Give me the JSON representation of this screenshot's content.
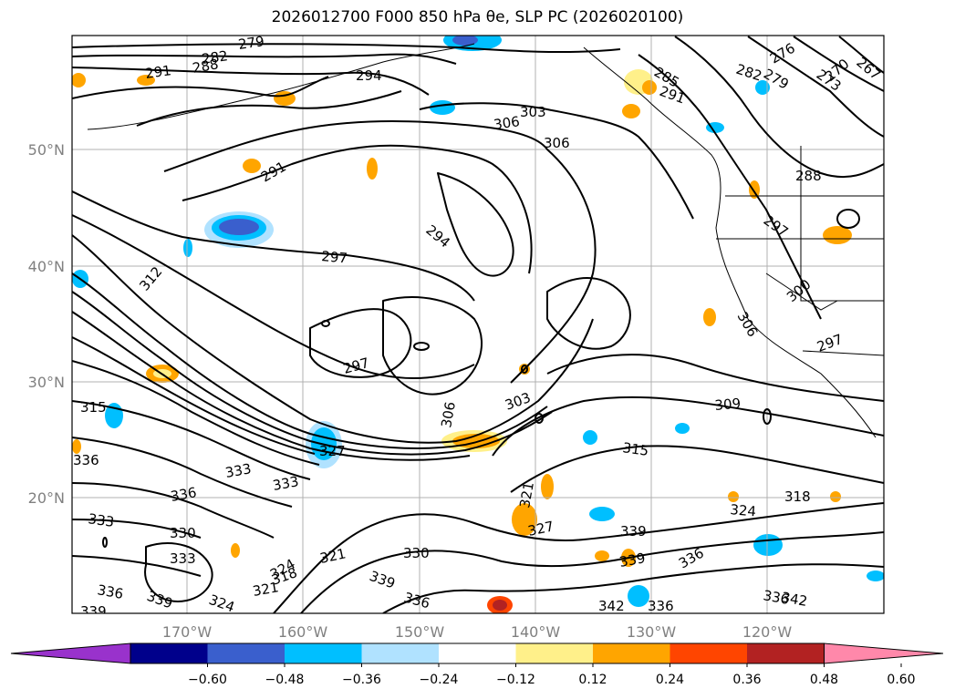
{
  "title": "2026012700 F000 850 hPa θe, SLP PC (2026020100)",
  "map": {
    "lon_labels": [
      "170°W",
      "160°W",
      "150°W",
      "140°W",
      "130°W",
      "120°W"
    ],
    "lat_labels": [
      "50°N",
      "40°N",
      "30°N",
      "20°N"
    ],
    "contour_labels": [
      "291",
      "288",
      "282",
      "279",
      "294",
      "285",
      "291",
      "282",
      "279",
      "276",
      "273",
      "270",
      "267",
      "306",
      "303",
      "306",
      "291",
      "288",
      "294",
      "297",
      "297",
      "312",
      "300",
      "306",
      "297",
      "297",
      "306",
      "303",
      "309",
      "315",
      "315",
      "336",
      "327",
      "333",
      "333",
      "336",
      "321",
      "318",
      "324",
      "333",
      "330",
      "333",
      "321",
      "330",
      "327",
      "339",
      "339",
      "324",
      "336",
      "339",
      "324",
      "339",
      "336",
      "321",
      "318",
      "336",
      "342",
      "336",
      "336",
      "342",
      "339"
    ]
  },
  "colorbar": {
    "colors": [
      "#9932cc",
      "#00008b",
      "#3a5fcd",
      "#00bfff",
      "#b0e2ff",
      "#ffffff",
      "#fff08a",
      "#ffa500",
      "#ff4500",
      "#b22222",
      "#ff88aa"
    ],
    "tick_labels": [
      "−0.60",
      "−0.48",
      "−0.36",
      "−0.24",
      "−0.12",
      "0.12",
      "0.24",
      "0.36",
      "0.48",
      "0.60"
    ]
  }
}
